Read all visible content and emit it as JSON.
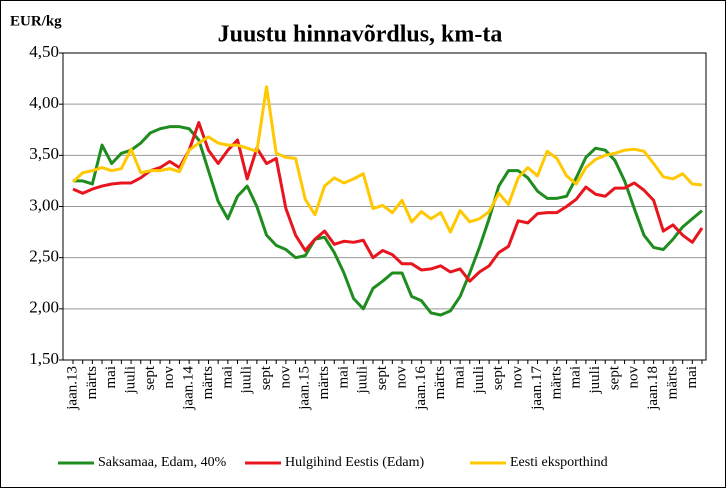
{
  "chart_data": {
    "type": "line",
    "title": "Juustu hinnavõrdlus, km-ta",
    "y_label": "EUR/kg",
    "categories": [
      "jaan.13",
      null,
      "märts",
      null,
      "mai",
      null,
      "juuli",
      null,
      "sept",
      null,
      "nov",
      null,
      "jaan.14",
      null,
      "märts",
      null,
      "mai",
      null,
      "juuli",
      null,
      "sept",
      null,
      "nov",
      null,
      "jaan.15",
      null,
      "märts",
      null,
      "mai",
      null,
      "juuli",
      null,
      "sept",
      null,
      "nov",
      null,
      "jaan.16",
      null,
      "märts",
      null,
      "mai",
      null,
      "juuli",
      null,
      "sept",
      null,
      "nov",
      null,
      "jaan.17",
      null,
      "märts",
      null,
      "mai",
      null,
      "juuli",
      null,
      "sept",
      null,
      "nov",
      null,
      "jaan.18",
      null,
      "märts",
      null,
      "mai",
      null
    ],
    "series": [
      {
        "name": "Saksamaa, Edam, 40%",
        "color": "#1e8c1e",
        "values": [
          3.25,
          3.25,
          3.22,
          3.6,
          3.42,
          3.52,
          3.55,
          3.62,
          3.72,
          3.76,
          3.78,
          3.78,
          3.76,
          3.65,
          3.35,
          3.05,
          2.88,
          3.1,
          3.2,
          3.0,
          2.72,
          2.62,
          2.58,
          2.5,
          2.52,
          2.68,
          2.7,
          2.55,
          2.35,
          2.1,
          2.0,
          2.2,
          2.27,
          2.35,
          2.35,
          2.12,
          2.08,
          1.96,
          1.94,
          1.98,
          2.12,
          2.35,
          2.6,
          2.88,
          3.2,
          3.35,
          3.35,
          3.28,
          3.15,
          3.08,
          3.08,
          3.1,
          3.28,
          3.48,
          3.57,
          3.55,
          3.45,
          3.25,
          2.98,
          2.72,
          2.6,
          2.58,
          2.68,
          2.8,
          2.88,
          2.96
        ]
      },
      {
        "name": "Hulgihind Eestis (Edam)",
        "color": "#e8141e",
        "values": [
          3.17,
          3.13,
          3.17,
          3.2,
          3.22,
          3.23,
          3.23,
          3.28,
          3.35,
          3.38,
          3.44,
          3.38,
          3.55,
          3.82,
          3.55,
          3.42,
          3.55,
          3.65,
          3.27,
          3.57,
          3.42,
          3.47,
          2.98,
          2.72,
          2.57,
          2.68,
          2.76,
          2.63,
          2.66,
          2.65,
          2.67,
          2.5,
          2.57,
          2.53,
          2.44,
          2.44,
          2.38,
          2.39,
          2.42,
          2.36,
          2.39,
          2.27,
          2.36,
          2.42,
          2.55,
          2.61,
          2.86,
          2.84,
          2.93,
          2.94,
          2.94,
          3.0,
          3.07,
          3.19,
          3.12,
          3.1,
          3.18,
          3.18,
          3.23,
          3.16,
          3.06,
          2.76,
          2.82,
          2.72,
          2.65,
          2.79
        ]
      },
      {
        "name": "Eesti eksporthind",
        "color": "#ffc800",
        "values": [
          3.24,
          3.33,
          3.35,
          3.38,
          3.35,
          3.37,
          3.56,
          3.33,
          3.35,
          3.35,
          3.37,
          3.34,
          3.55,
          3.62,
          3.68,
          3.62,
          3.6,
          3.6,
          3.57,
          3.54,
          4.17,
          3.52,
          3.48,
          3.47,
          3.07,
          2.92,
          3.2,
          3.28,
          3.23,
          3.27,
          3.32,
          2.98,
          3.01,
          2.94,
          3.06,
          2.85,
          2.95,
          2.88,
          2.94,
          2.75,
          2.96,
          2.85,
          2.88,
          2.95,
          3.13,
          3.02,
          3.28,
          3.38,
          3.3,
          3.54,
          3.47,
          3.3,
          3.22,
          3.38,
          3.46,
          3.5,
          3.52,
          3.55,
          3.56,
          3.54,
          3.42,
          3.29,
          3.27,
          3.32,
          3.22,
          3.21
        ]
      }
    ],
    "ylim": [
      1.5,
      4.5
    ],
    "yticks": [
      {
        "value": 1.5,
        "label": "1,50"
      },
      {
        "value": 2.0,
        "label": "2,00"
      },
      {
        "value": 2.5,
        "label": "2,50"
      },
      {
        "value": 3.0,
        "label": "3,00"
      },
      {
        "value": 3.5,
        "label": "3,50"
      },
      {
        "value": 4.0,
        "label": "4,00"
      },
      {
        "value": 4.5,
        "label": "4,50"
      }
    ],
    "grid": true,
    "legend": "bottom"
  }
}
